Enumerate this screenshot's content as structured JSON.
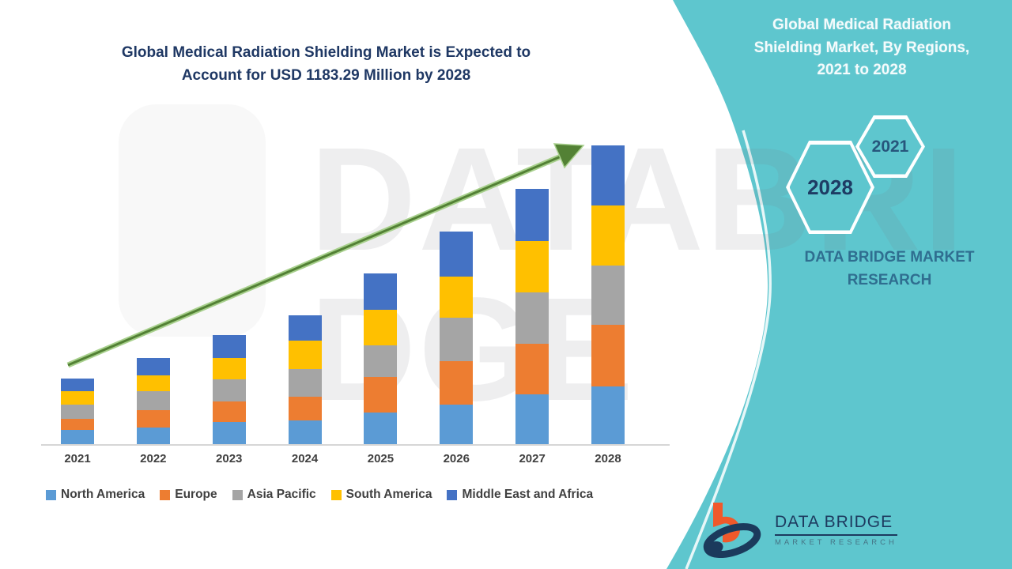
{
  "header": {
    "title_lines": [
      "Global Medical Radiation Shielding Market is Expected to",
      "Account for USD 1183.29 Million by 2028"
    ]
  },
  "sidebar": {
    "title_lines": [
      "Global Medical Radiation",
      "Shielding Market, By Regions,",
      "2021 to 2028"
    ],
    "hex_year_front": "2021",
    "hex_year_back": "2028",
    "brand_lines": [
      "DATA BRIDGE MARKET",
      "RESEARCH"
    ],
    "accent_color": "#5EC6CE"
  },
  "watermark": {
    "text": "DATABRIDGE"
  },
  "logo": {
    "name": "DATA BRIDGE",
    "subtitle": "MARKET RESEARCH"
  },
  "chart_data": {
    "type": "bar",
    "stacked": true,
    "title": "Global Medical Radiation Shielding Market is Expected to Account for USD 1183.29 Million by 2028",
    "unit": "USD Million",
    "categories": [
      "2021",
      "2022",
      "2023",
      "2024",
      "2025",
      "2026",
      "2027",
      "2028"
    ],
    "series": [
      {
        "name": "North America",
        "color": "#5B9BD5",
        "values": [
          55,
          65,
          88,
          94,
          125,
          157,
          196,
          227
        ]
      },
      {
        "name": "Europe",
        "color": "#ED7D31",
        "values": [
          45,
          70,
          80,
          94,
          141,
          172,
          200,
          246
        ]
      },
      {
        "name": "Asia Pacific",
        "color": "#A5A5A5",
        "values": [
          55,
          75,
          88,
          110,
          125,
          172,
          205,
          234
        ]
      },
      {
        "name": "South America",
        "color": "#FFC000",
        "values": [
          55,
          63,
          86,
          113,
          141,
          163,
          202,
          237
        ]
      },
      {
        "name": "Middle East and Africa",
        "color": "#4472C4",
        "values": [
          50,
          68,
          90,
          99,
          144,
          178,
          208,
          239.29
        ]
      }
    ],
    "totals": [
      260,
      341,
      432,
      510,
      676,
      842,
      1011,
      1183.29
    ],
    "ylim": [
      0,
      1200
    ],
    "grid": false,
    "legend_position": "bottom",
    "trend_arrow": true
  }
}
